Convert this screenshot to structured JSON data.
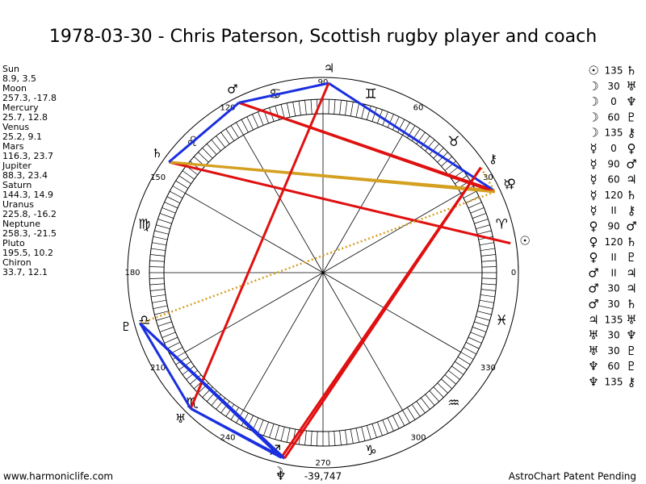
{
  "title": "1978-03-30 - Chris Paterson, Scottish rugby player and coach",
  "planets": [
    {
      "name": "Sun",
      "coords": "8.9, 3.5",
      "glyph": "☉"
    },
    {
      "name": "Moon",
      "coords": "257.3, -17.8",
      "glyph": "☽"
    },
    {
      "name": "Mercury",
      "coords": "25.7, 12.8",
      "glyph": "☿"
    },
    {
      "name": "Venus",
      "coords": "25.2, 9.1",
      "glyph": "♀"
    },
    {
      "name": "Mars",
      "coords": "116.3, 23.7",
      "glyph": "♂"
    },
    {
      "name": "Jupiter",
      "coords": "88.3, 23.4",
      "glyph": "♃"
    },
    {
      "name": "Saturn",
      "coords": "144.3, 14.9",
      "glyph": "♄"
    },
    {
      "name": "Uranus",
      "coords": "225.8, -16.2",
      "glyph": "♅"
    },
    {
      "name": "Neptune",
      "coords": "258.3, -21.5",
      "glyph": "♆"
    },
    {
      "name": "Pluto",
      "coords": "195.5, 10.2",
      "glyph": "♇"
    },
    {
      "name": "Chiron",
      "coords": "33.7, 12.1",
      "glyph": "⚷"
    }
  ],
  "aspects": [
    {
      "a": "☉",
      "aspect": "135",
      "b": "♄"
    },
    {
      "a": "☽",
      "aspect": "30",
      "b": "♅"
    },
    {
      "a": "☽",
      "aspect": "0",
      "b": "♆"
    },
    {
      "a": "☽",
      "aspect": "60",
      "b": "♇"
    },
    {
      "a": "☽",
      "aspect": "135",
      "b": "⚷"
    },
    {
      "a": "☿",
      "aspect": "0",
      "b": "♀"
    },
    {
      "a": "☿",
      "aspect": "90",
      "b": "♂"
    },
    {
      "a": "☿",
      "aspect": "60",
      "b": "♃"
    },
    {
      "a": "☿",
      "aspect": "120",
      "b": "♄"
    },
    {
      "a": "☿",
      "aspect": "II",
      "b": "⚷"
    },
    {
      "a": "♀",
      "aspect": "90",
      "b": "♂"
    },
    {
      "a": "♀",
      "aspect": "120",
      "b": "♄"
    },
    {
      "a": "♀",
      "aspect": "II",
      "b": "♇"
    },
    {
      "a": "♂",
      "aspect": "II",
      "b": "♃"
    },
    {
      "a": "♂",
      "aspect": "30",
      "b": "♃"
    },
    {
      "a": "♂",
      "aspect": "30",
      "b": "♄"
    },
    {
      "a": "♃",
      "aspect": "135",
      "b": "♅"
    },
    {
      "a": "♅",
      "aspect": "30",
      "b": "♆"
    },
    {
      "a": "♅",
      "aspect": "30",
      "b": "♇"
    },
    {
      "a": "♆",
      "aspect": "60",
      "b": "♇"
    },
    {
      "a": "♆",
      "aspect": "135",
      "b": "⚷"
    }
  ],
  "signs": [
    "♈",
    "♉",
    "♊",
    "♋",
    "♌",
    "♍",
    "♎",
    "♏",
    "♐",
    "♑",
    "♒",
    "♓"
  ],
  "degree_labels": [
    "0",
    "30",
    "60",
    "90",
    "120",
    "150",
    "180",
    "210",
    "240",
    "270",
    "300",
    "330"
  ],
  "footer": {
    "left": "www.harmoniclife.com",
    "center": "-39,747",
    "right": "AstroChart Patent Pending"
  }
}
